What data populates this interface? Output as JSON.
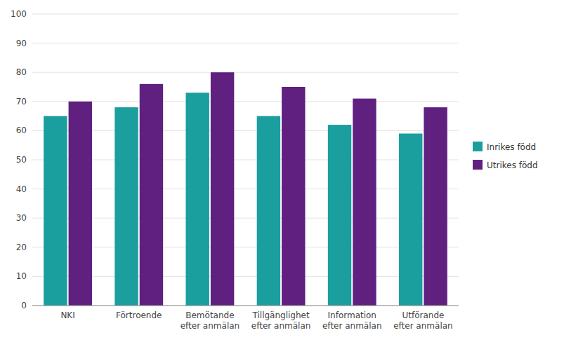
{
  "chart_data": {
    "type": "bar",
    "categories": [
      "NKI",
      "Förtroende",
      "Bemötande\nefter anmälan",
      "Tillgänglighet\nefter anmälan",
      "Information\nefter anmälan",
      "Utförande\nefter anmälan"
    ],
    "series": [
      {
        "name": "Inrikes född",
        "color": "#1a9e9e",
        "values": [
          65,
          68,
          73,
          65,
          62,
          59
        ]
      },
      {
        "name": "Utrikes född",
        "color": "#602080",
        "values": [
          70,
          76,
          80,
          75,
          71,
          68
        ]
      }
    ],
    "ylim": [
      0,
      100
    ],
    "yticks": [
      0,
      10,
      20,
      30,
      40,
      50,
      60,
      70,
      80,
      90,
      100
    ],
    "grid": true,
    "legend": "right"
  }
}
